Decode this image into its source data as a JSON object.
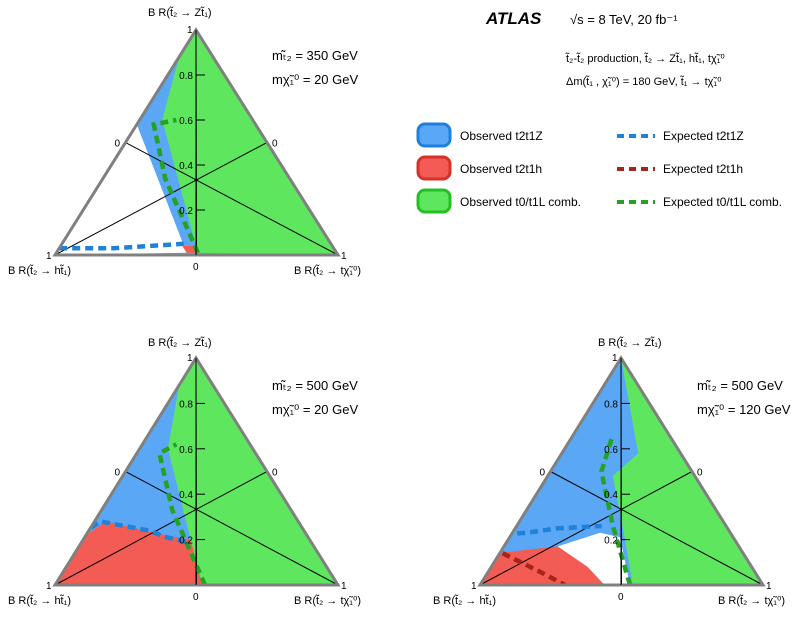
{
  "header": {
    "experiment": "ATLAS",
    "energy": "√s = 8 TeV, 20 fb⁻¹",
    "process_line": "t̃₂-t̃₂ production, t̃₂ → Zt̃₁, ht̃₁, tχ̃₁⁰",
    "dm_line": "Δm(t̃₁ , χ̃₁⁰) = 180 GeV, t̃₁ → tχ̃₁⁰"
  },
  "legend": {
    "placement": "top-right",
    "items": [
      {
        "label": "Observed t2t1Z",
        "kind": "fill",
        "color": "#5aa7f5",
        "edge": "#1f7fe0"
      },
      {
        "label": "Observed t2t1h",
        "kind": "fill",
        "color": "#f25c54",
        "edge": "#d8312a"
      },
      {
        "label": "Observed t0/t1L comb.",
        "kind": "fill",
        "color": "#5fe65f",
        "edge": "#25c025"
      },
      {
        "label": "Expected t2t1Z",
        "kind": "dash",
        "color": "#1f82d8"
      },
      {
        "label": "Expected t2t1h",
        "kind": "dash",
        "color": "#a82418"
      },
      {
        "label": "Expected t0/t1L comb.",
        "kind": "dash",
        "color": "#23a223"
      }
    ]
  },
  "chart_data": [
    {
      "type": "area",
      "panel": "top-left",
      "mass_lines": [
        "mₜ̃₂ = 350 GeV",
        "mχ̃₁⁰ = 20 GeV"
      ],
      "corner_labels": {
        "top": "B R(t̃₂ → Zt̃₁)",
        "left": "B R(t̃₂ → ht̃₁)",
        "right": "B R(t̃₂ → tχ̃₁⁰)"
      },
      "axis_ticks": [
        {
          "value": 0.2,
          "label": "0.2"
        },
        {
          "value": 0.4,
          "label": "0.4"
        },
        {
          "value": 0.6,
          "label": "0.6"
        },
        {
          "value": 0.8,
          "label": "0.8"
        }
      ],
      "side_labels": {
        "top": "1",
        "mid_left": "0",
        "mid_right": "0",
        "bottom_left": "1",
        "bottom_right": "1",
        "bottom_center": "0"
      },
      "regions": [
        {
          "name": "Observed t2t1Z",
          "color": "#5aa7f5",
          "points": [
            [
              1,
              0
            ],
            [
              0.53,
              0.01
            ],
            [
              0.42,
              0.58
            ],
            [
              0,
              1
            ],
            [
              0,
              0
            ]
          ]
        },
        {
          "name": "Observed t2t1h",
          "color": "#f25c54",
          "points": [
            [
              0.53,
              0.01
            ],
            [
              0.47,
              0.01
            ],
            [
              0.47,
              0.04
            ],
            [
              0.53,
              0.04
            ]
          ]
        },
        {
          "name": "Observed t0/t1L comb.",
          "color": "#5fe65f",
          "points": [
            [
              0.49,
              0.01
            ],
            [
              0.32,
              0.6
            ],
            [
              0.12,
              0.88
            ],
            [
              0,
              1
            ],
            [
              0,
              0
            ]
          ]
        }
      ],
      "expected": [
        {
          "name": "Expected t2t1Z",
          "color": "#1f82d8",
          "points": [
            [
              0.97,
              0.03
            ],
            [
              0.78,
              0.03
            ],
            [
              0.52,
              0.05
            ]
          ]
        },
        {
          "name": "Expected t2t1h",
          "color": "#a82418",
          "points": []
        },
        {
          "name": "Expected t0/t1L comb.",
          "color": "#23a223",
          "points": [
            [
              0.49,
              0.01
            ],
            [
              0.44,
              0.34
            ],
            [
              0.36,
              0.58
            ],
            [
              0.27,
              0.6
            ]
          ]
        }
      ]
    },
    {
      "type": "area",
      "panel": "bottom-left",
      "mass_lines": [
        "mₜ̃₂ = 500 GeV",
        "mχ̃₁⁰ = 20 GeV"
      ],
      "corner_labels": {
        "top": "B R(t̃₂ → Zt̃₁)",
        "left": "B R(t̃₂ → ht̃₁)",
        "right": "B R(t̃₂ → tχ̃₁⁰)"
      },
      "axis_ticks": [
        {
          "value": 0.2,
          "label": "0.2"
        },
        {
          "value": 0.4,
          "label": "0.4"
        },
        {
          "value": 0.6,
          "label": "0.6"
        },
        {
          "value": 0.8,
          "label": "0.8"
        }
      ],
      "side_labels": {
        "top": "1",
        "mid_left": "0",
        "mid_right": "0",
        "bottom_left": "1",
        "bottom_right": "1",
        "bottom_center": "0"
      },
      "regions": [
        {
          "name": "Observed t2t1Z",
          "color": "#5aa7f5",
          "points": [
            [
              1,
              0
            ],
            [
              0,
              0
            ],
            [
              0,
              1
            ]
          ]
        },
        {
          "name": "Observed t2t1h",
          "color": "#f25c54",
          "points": [
            [
              1,
              0
            ],
            [
              0.48,
              0
            ],
            [
              0.42,
              0.2
            ],
            [
              0.5,
              0.22
            ],
            [
              0.68,
              0.28
            ],
            [
              0.78,
              0.22
            ]
          ]
        },
        {
          "name": "Observed t0/t1L comb.",
          "color": "#5fe65f",
          "points": [
            [
              0.48,
              0
            ],
            [
              0.3,
              0.6
            ],
            [
              0.12,
              0.88
            ],
            [
              0,
              1
            ],
            [
              0,
              0
            ]
          ]
        }
      ],
      "expected": [
        {
          "name": "Expected t2t1Z",
          "color": "#1f82d8",
          "points": [
            [
              0.8,
              0.22
            ],
            [
              0.7,
              0.28
            ],
            [
              0.55,
              0.24
            ],
            [
              0.5,
              0.21
            ],
            [
              0.44,
              0.19
            ]
          ]
        },
        {
          "name": "Expected t2t1h",
          "color": "#a82418",
          "points": []
        },
        {
          "name": "Expected t0/t1L comb.",
          "color": "#23a223",
          "points": [
            [
              0.47,
              0
            ],
            [
              0.42,
              0.33
            ],
            [
              0.34,
              0.58
            ],
            [
              0.26,
              0.62
            ]
          ]
        }
      ]
    },
    {
      "type": "area",
      "panel": "bottom-right",
      "mass_lines": [
        "mₜ̃₂ = 500 GeV",
        "mχ̃₁⁰ = 120 GeV"
      ],
      "corner_labels": {
        "top": "B R(t̃₂ → Zt̃₁)",
        "left": "B R(t̃₂ → ht̃₁)",
        "right": "B R(t̃₂ → tχ̃₁⁰)"
      },
      "axis_ticks": [
        {
          "value": 0.2,
          "label": "0.2"
        },
        {
          "value": 0.4,
          "label": "0.4"
        },
        {
          "value": 0.6,
          "label": "0.6"
        },
        {
          "value": 0.8,
          "label": "0.8"
        }
      ],
      "side_labels": {
        "top": "1",
        "mid_left": "0",
        "mid_right": "0",
        "bottom_left": "1",
        "bottom_right": "1",
        "bottom_center": "0"
      },
      "regions": [
        {
          "name": "Observed t2t1Z",
          "color": "#5aa7f5",
          "points": [
            [
              1,
              0
            ],
            [
              0,
              0
            ],
            [
              0,
              1
            ]
          ]
        },
        {
          "name": "Observed t2t1h",
          "color": "#f25c54",
          "points": [
            [
              1,
              0
            ],
            [
              0.56,
              0
            ],
            [
              0.58,
              0.08
            ],
            [
              0.64,
              0.17
            ],
            [
              0.87,
              0.14
            ]
          ]
        },
        {
          "name": "Observed t0/t1L comb.",
          "color": "#5fe65f",
          "points": [
            [
              0.46,
              0
            ],
            [
              0.38,
              0.22
            ],
            [
              0.29,
              0.48
            ],
            [
              0.15,
              0.58
            ],
            [
              0,
              1
            ],
            [
              0,
              0
            ]
          ]
        },
        {
          "name": "uncovered",
          "color": "#ffffff",
          "points": [
            [
              0.56,
              0
            ],
            [
              0.47,
              0
            ],
            [
              0.4,
              0.21
            ],
            [
              0.46,
              0.23
            ],
            [
              0.64,
              0.17
            ],
            [
              0.58,
              0.08
            ]
          ]
        }
      ],
      "expected": [
        {
          "name": "Expected t2t1Z",
          "color": "#1f82d8",
          "points": [
            [
              0.85,
              0.22
            ],
            [
              0.72,
              0.23
            ],
            [
              0.6,
              0.25
            ],
            [
              0.44,
              0.26
            ]
          ]
        },
        {
          "name": "Expected t2t1h",
          "color": "#a82418",
          "points": [
            [
              0.85,
              0.14
            ],
            [
              0.75,
              0.05
            ],
            [
              0.7,
              0
            ]
          ]
        },
        {
          "name": "Expected t0/t1L comb.",
          "color": "#23a223",
          "points": [
            [
              0.47,
              0
            ],
            [
              0.4,
              0.26
            ],
            [
              0.32,
              0.5
            ],
            [
              0.2,
              0.66
            ]
          ]
        }
      ]
    }
  ]
}
